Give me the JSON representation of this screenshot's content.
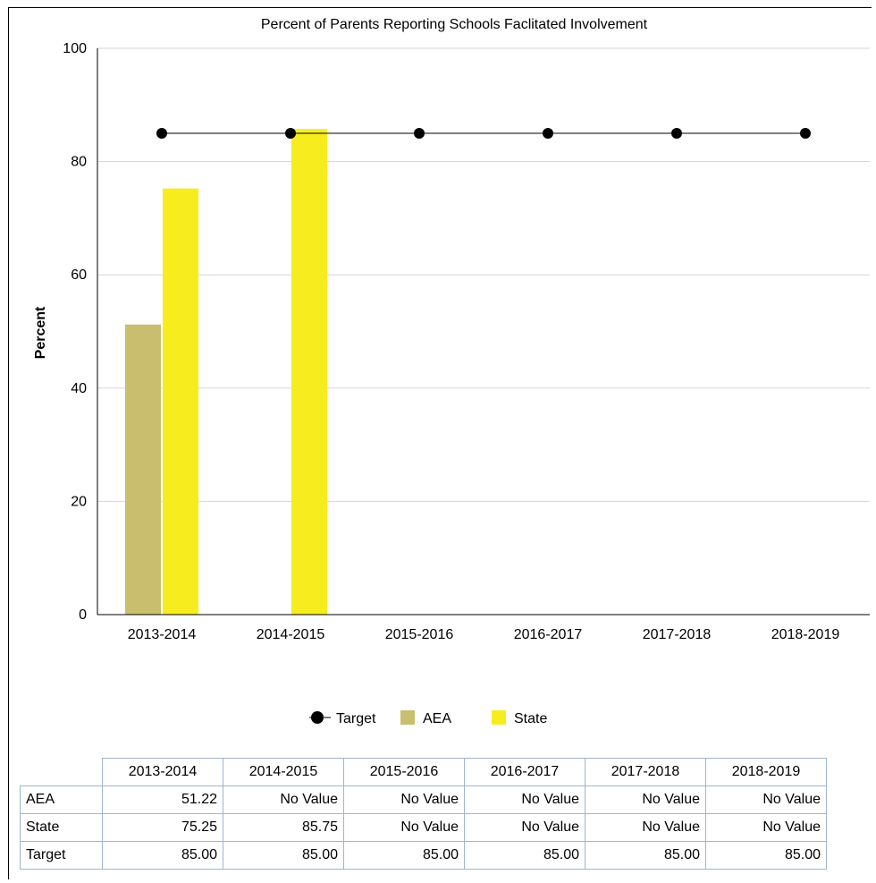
{
  "chart_data": {
    "type": "bar",
    "title": "Percent of Parents Reporting Schools Faclitated Involvement",
    "ylabel": "Percent",
    "xlabel": "",
    "ylim": [
      0,
      100
    ],
    "yticks": [
      "0",
      "20",
      "40",
      "60",
      "80",
      "100"
    ],
    "grid": true,
    "legend_position": "bottom",
    "categories": [
      "2013-2014",
      "2014-2015",
      "2015-2016",
      "2016-2017",
      "2017-2018",
      "2018-2019"
    ],
    "series": [
      {
        "name": "AEA",
        "type": "bar",
        "color": "#c8be6e",
        "values": [
          51.22,
          null,
          null,
          null,
          null,
          null
        ]
      },
      {
        "name": "State",
        "type": "bar",
        "color": "#f7ec1e",
        "values": [
          75.25,
          85.75,
          null,
          null,
          null,
          null
        ]
      },
      {
        "name": "Target",
        "type": "line",
        "color": "#000000",
        "values": [
          85.0,
          85.0,
          85.0,
          85.0,
          85.0,
          85.0
        ]
      }
    ],
    "legend": [
      "Target",
      "AEA",
      "State"
    ]
  },
  "table": {
    "columns": [
      "2013-2014",
      "2014-2015",
      "2015-2016",
      "2016-2017",
      "2017-2018",
      "2018-2019"
    ],
    "rows": [
      {
        "label": "AEA",
        "cells": [
          "51.22",
          "No Value",
          "No Value",
          "No Value",
          "No Value",
          "No Value"
        ]
      },
      {
        "label": "State",
        "cells": [
          "75.25",
          "85.75",
          "No Value",
          "No Value",
          "No Value",
          "No Value"
        ]
      },
      {
        "label": "Target",
        "cells": [
          "85.00",
          "85.00",
          "85.00",
          "85.00",
          "85.00",
          "85.00"
        ]
      }
    ]
  }
}
